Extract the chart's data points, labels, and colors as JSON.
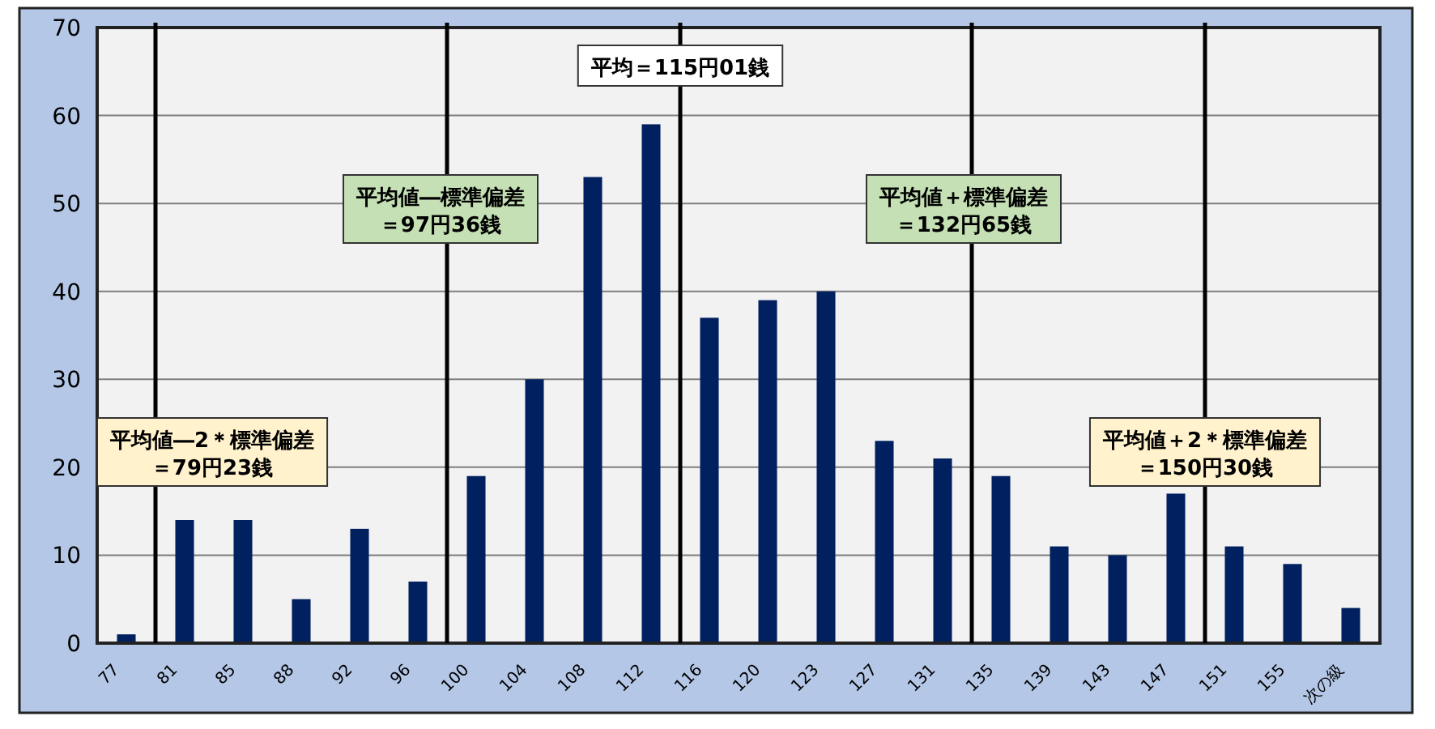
{
  "chart_data": {
    "type": "bar",
    "categories": [
      "77",
      "81",
      "85",
      "88",
      "92",
      "96",
      "100",
      "104",
      "108",
      "112",
      "116",
      "120",
      "123",
      "127",
      "131",
      "135",
      "139",
      "143",
      "147",
      "151",
      "155",
      "次の級"
    ],
    "values": [
      1,
      14,
      14,
      5,
      13,
      7,
      19,
      30,
      53,
      59,
      37,
      39,
      40,
      23,
      21,
      19,
      11,
      10,
      17,
      11,
      9,
      4
    ],
    "color": "#002060",
    "ylim": [
      0,
      70
    ],
    "yticks": [
      0,
      10,
      20,
      30,
      40,
      50,
      60,
      70
    ],
    "grid": "y",
    "annotations": [
      "平均値―2＊標準偏差",
      "＝79円23銭",
      "平均値―標準偏差",
      "＝97円36銭",
      "平均＝115円01銭",
      "平均値＋標準偏差",
      "＝132円65銭",
      "平均値＋2＊標準偏差",
      "＝150円30銭"
    ]
  }
}
